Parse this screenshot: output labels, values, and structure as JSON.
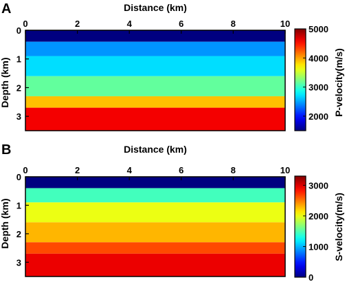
{
  "chart_data": [
    {
      "panel": "A",
      "type": "heatmap",
      "xlabel": "Distance (km)",
      "ylabel": "Depth (km)",
      "xlim": [
        0,
        10
      ],
      "ylim": [
        3.5,
        0
      ],
      "xticks": [
        "0",
        "2",
        "4",
        "6",
        "8",
        "10"
      ],
      "yticks": [
        "0",
        "1",
        "2",
        "3"
      ],
      "colorbar": {
        "label": "P-velocity(m/s)",
        "range": [
          1500,
          5000
        ],
        "ticks": [
          "2000",
          "3000",
          "4000",
          "5000"
        ],
        "colormap": "jet"
      },
      "layers": [
        {
          "depth_km": [
            0.0,
            0.4
          ],
          "value": 1500
        },
        {
          "depth_km": [
            0.4,
            0.9
          ],
          "value": 2450
        },
        {
          "depth_km": [
            0.9,
            1.6
          ],
          "value": 2700
        },
        {
          "depth_km": [
            1.6,
            2.3
          ],
          "value": 3150
        },
        {
          "depth_km": [
            2.3,
            2.7
          ],
          "value": 3900
        },
        {
          "depth_km": [
            2.7,
            3.5
          ],
          "value": 4600
        }
      ]
    },
    {
      "panel": "B",
      "type": "heatmap",
      "xlabel": "Distance (km)",
      "ylabel": "Depth (km)",
      "xlim": [
        0,
        10
      ],
      "ylim": [
        3.5,
        0
      ],
      "xticks": [
        "0",
        "2",
        "4",
        "6",
        "8",
        "10"
      ],
      "yticks": [
        "0",
        "1",
        "2",
        "3"
      ],
      "colorbar": {
        "label": "S-velocity(m/s)",
        "range": [
          0,
          3300
        ],
        "ticks": [
          "0",
          "1000",
          "2000",
          "3000"
        ],
        "colormap": "jet"
      },
      "layers": [
        {
          "depth_km": [
            0.0,
            0.4
          ],
          "value": 0
        },
        {
          "depth_km": [
            0.4,
            0.9
          ],
          "value": 1450
        },
        {
          "depth_km": [
            0.9,
            1.6
          ],
          "value": 2000
        },
        {
          "depth_km": [
            1.6,
            2.3
          ],
          "value": 2300
        },
        {
          "depth_km": [
            2.3,
            2.7
          ],
          "value": 2650
        },
        {
          "depth_km": [
            2.7,
            3.5
          ],
          "value": 2950
        }
      ]
    }
  ]
}
